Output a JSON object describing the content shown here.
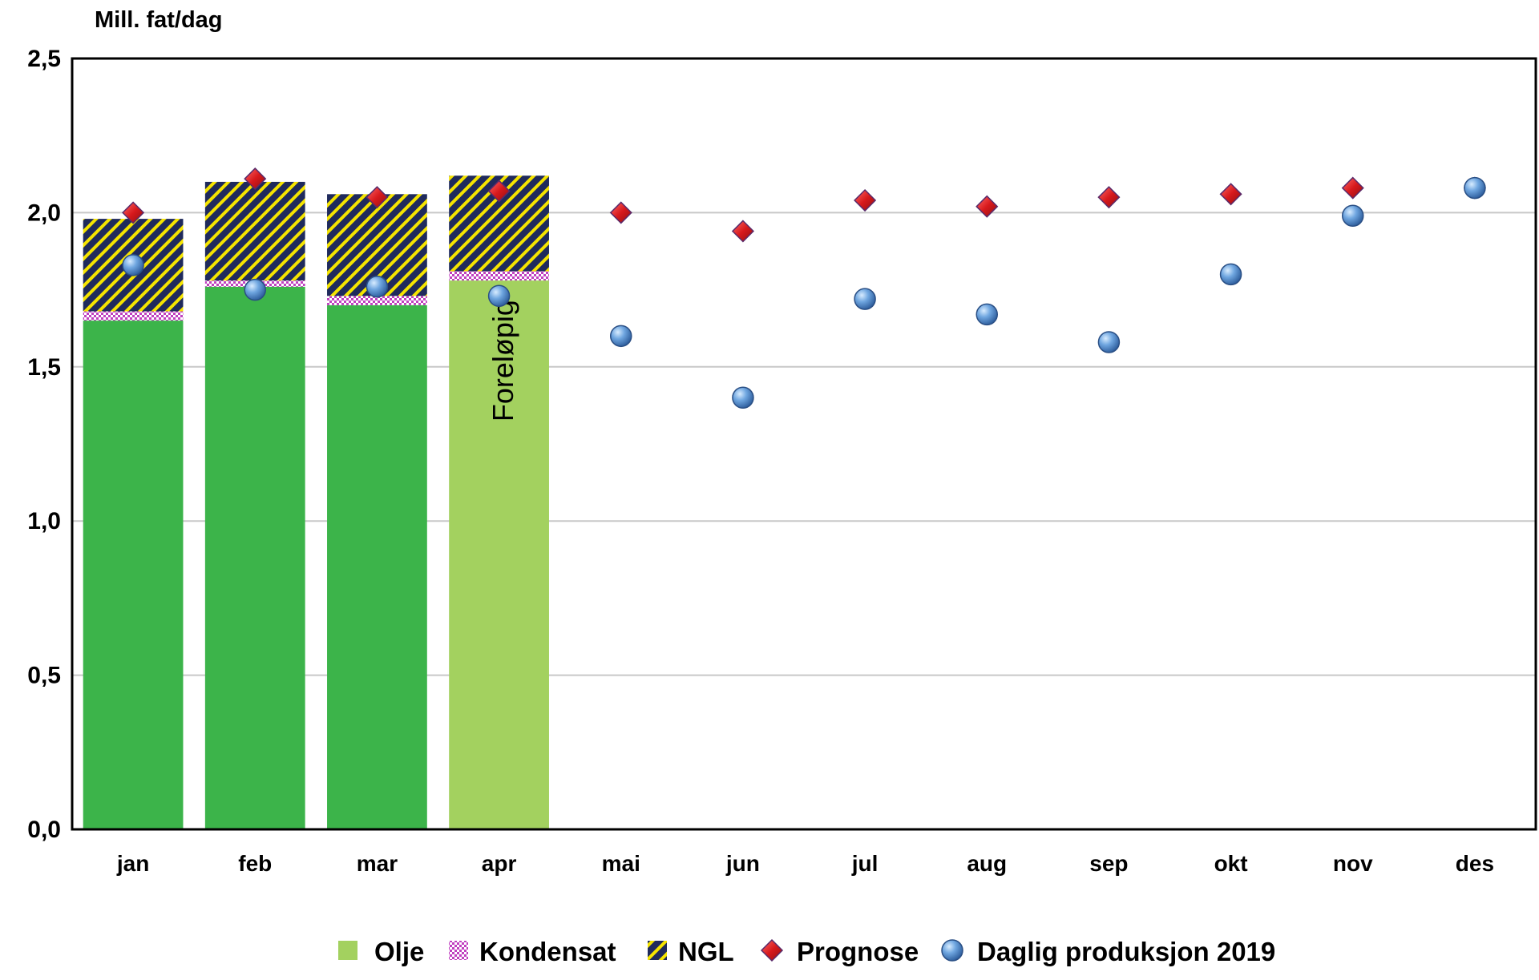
{
  "chart_data": {
    "type": "bar",
    "stacked": true,
    "ylabel": "Mill. fat/dag",
    "ylim": [
      0,
      2.5
    ],
    "yticks": [
      "0,0",
      "0,5",
      "1,0",
      "1,5",
      "2,0",
      "2,5"
    ],
    "ytick_values": [
      0,
      0.5,
      1.0,
      1.5,
      2.0,
      2.5
    ],
    "grid": true,
    "legend_position": "bottom",
    "categories": [
      "jan",
      "feb",
      "mar",
      "apr",
      "mai",
      "jun",
      "jul",
      "aug",
      "sep",
      "okt",
      "nov",
      "des"
    ],
    "series": [
      {
        "name": "Olje",
        "kind": "bar",
        "color": "#3cb44a",
        "preliminary_color": "#a3d15f",
        "values": [
          1.65,
          1.76,
          1.7,
          1.78,
          null,
          null,
          null,
          null,
          null,
          null,
          null,
          null
        ]
      },
      {
        "name": "Kondensat",
        "kind": "bar",
        "color": "#c040c0",
        "values": [
          0.03,
          0.02,
          0.03,
          0.03,
          null,
          null,
          null,
          null,
          null,
          null,
          null,
          null
        ]
      },
      {
        "name": "NGL",
        "kind": "bar",
        "color": "#1f2a5c",
        "values": [
          0.3,
          0.32,
          0.33,
          0.31,
          null,
          null,
          null,
          null,
          null,
          null,
          null,
          null
        ]
      },
      {
        "name": "Prognose",
        "kind": "marker",
        "marker": "diamond",
        "color": "#d7191c",
        "values": [
          2.0,
          2.11,
          2.05,
          2.07,
          2.0,
          1.94,
          2.04,
          2.02,
          2.05,
          2.06,
          2.08,
          2.08
        ]
      },
      {
        "name": "Daglig produksjon 2019",
        "kind": "marker",
        "marker": "circle",
        "color": "#4a86c8",
        "values": [
          1.83,
          1.75,
          1.76,
          1.73,
          1.6,
          1.4,
          1.72,
          1.67,
          1.58,
          1.8,
          1.99,
          2.08
        ]
      }
    ],
    "annotations": [
      {
        "category": "apr",
        "text": "Foreløpig"
      }
    ]
  }
}
